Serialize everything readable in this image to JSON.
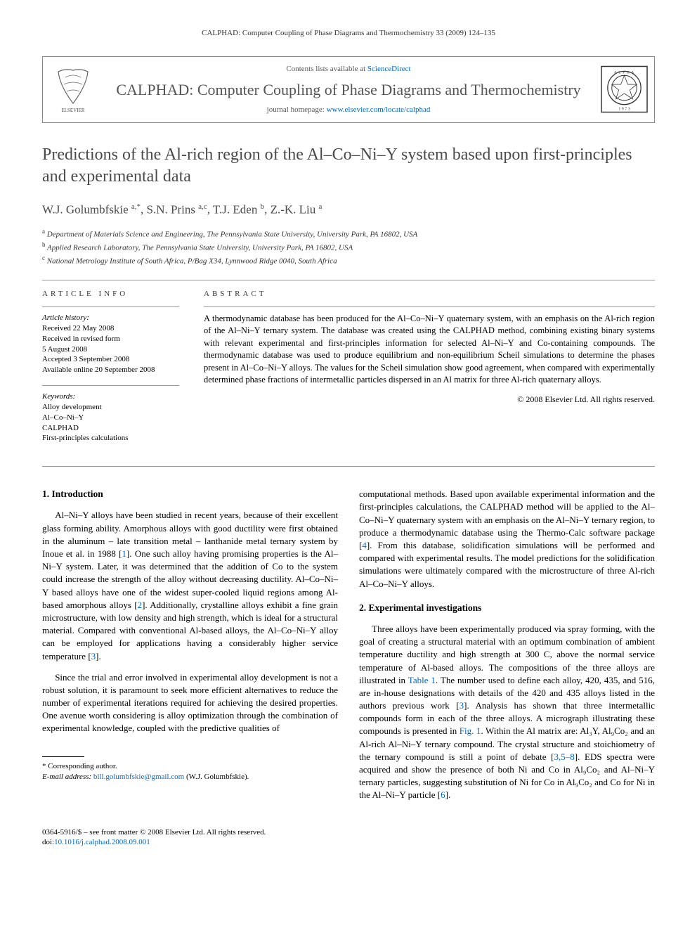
{
  "running_header": "CALPHAD: Computer Coupling of Phase Diagrams and Thermochemistry 33 (2009) 124–135",
  "masthead": {
    "contents_prefix": "Contents lists available at ",
    "contents_link": "ScienceDirect",
    "journal_name": "CALPHAD: Computer Coupling of Phase Diagrams and Thermochemistry",
    "homepage_prefix": "journal homepage: ",
    "homepage_link": "www.elsevier.com/locate/calphad"
  },
  "title": "Predictions of the Al-rich region of the Al–Co–Ni–Y system based upon first-principles and experimental data",
  "authors_html": "W.J. Golumbfskie <sup>a,*</sup>, S.N. Prins <sup>a,c</sup>, T.J. Eden <sup>b</sup>, Z.-K. Liu <sup>a</sup>",
  "affiliations": [
    {
      "sup": "a",
      "text": "Department of Materials Science and Engineering, The Pennsylvania State University, University Park, PA 16802, USA"
    },
    {
      "sup": "b",
      "text": "Applied Research Laboratory, The Pennsylvania State University, University Park, PA 16802, USA"
    },
    {
      "sup": "c",
      "text": "National Metrology Institute of South Africa, P/Bag X34, Lynnwood Ridge 0040, South Africa"
    }
  ],
  "article_info": {
    "heading": "ARTICLE INFO",
    "history_label": "Article history:",
    "history": [
      "Received 22 May 2008",
      "Received in revised form",
      "5 August 2008",
      "Accepted 3 September 2008",
      "Available online 20 September 2008"
    ],
    "keywords_label": "Keywords:",
    "keywords": [
      "Alloy development",
      "Al–Co–Ni–Y",
      "CALPHAD",
      "First-principles calculations"
    ]
  },
  "abstract": {
    "heading": "ABSTRACT",
    "text": "A thermodynamic database has been produced for the Al–Co–Ni–Y quaternary system, with an emphasis on the Al-rich region of the Al–Ni–Y ternary system. The database was created using the CALPHAD method, combining existing binary systems with relevant experimental and first-principles information for selected Al–Ni–Y and Co-containing compounds. The thermodynamic database was used to produce equilibrium and non-equilibrium Scheil simulations to determine the phases present in Al–Co–Ni–Y alloys. The values for the Scheil simulation show good agreement, when compared with experimentally determined phase fractions of intermetallic particles dispersed in an Al matrix for three Al-rich quaternary alloys.",
    "copyright": "© 2008 Elsevier Ltd. All rights reserved."
  },
  "sections": {
    "intro_heading": "1. Introduction",
    "intro_p1": "Al–Ni–Y alloys have been studied in recent years, because of their excellent glass forming ability. Amorphous alloys with good ductility were first obtained in the aluminum – late transition metal – lanthanide metal ternary system by Inoue et al. in 1988 [1]. One such alloy having promising properties is the Al–Ni–Y system. Later, it was determined that the addition of Co to the system could increase the strength of the alloy without decreasing ductility. Al–Co–Ni–Y based alloys have one of the widest super-cooled liquid regions among Al-based amorphous alloys [2]. Additionally, crystalline alloys exhibit a fine grain microstructure, with low density and high strength, which is ideal for a structural material. Compared with conventional Al-based alloys, the Al–Co–Ni–Y alloy can be employed for applications having a considerably higher service temperature [3].",
    "intro_p2": "Since the trial and error involved in experimental alloy development is not a robust solution, it is paramount to seek more efficient alternatives to reduce the number of experimental iterations required for achieving the desired properties. One avenue worth considering is alloy optimization through the combination of experimental knowledge, coupled with the predictive qualities of",
    "col2_p1": "computational methods. Based upon available experimental information and the first-principles calculations, the CALPHAD method will be applied to the Al–Co–Ni–Y quaternary system with an emphasis on the Al–Ni–Y ternary region, to produce a thermodynamic database using the Thermo-Calc software package [4]. From this database, solidification simulations will be performed and compared with experimental results. The model predictions for the solidification simulations were ultimately compared with the microstructure of three Al-rich Al–Co–Ni–Y alloys.",
    "exp_heading": "2. Experimental investigations",
    "exp_p1": "Three alloys have been experimentally produced via spray forming, with the goal of creating a structural material with an optimum combination of ambient temperature ductility and high strength at 300 C, above the normal service temperature of Al-based alloys. The compositions of the three alloys are illustrated in Table 1. The number used to define each alloy, 420, 435, and 516, are in-house designations with details of the 420 and 435 alloys listed in the authors previous work [3]. Analysis has shown that three intermetallic compounds form in each of the three alloys. A micrograph illustrating these compounds is presented in Fig. 1. Within the Al matrix are: Al₃Y, Al₉Co₂ and an Al-rich Al–Ni–Y ternary compound. The crystal structure and stoichiometry of the ternary compound is still a point of debate [3,5–8]. EDS spectra were acquired and show the presence of both Ni and Co in Al₉Co₂ and Al–Ni–Y ternary particles, suggesting substitution of Ni for Co in Al₉Co₂ and Co for Ni in the Al–Ni–Y particle [6]."
  },
  "footnotes": {
    "corr_label": "* Corresponding author.",
    "email_label": "E-mail address: ",
    "email": "bill.golumbfskie@gmail.com",
    "email_suffix": " (W.J. Golumbfskie)."
  },
  "footer": {
    "issn_line": "0364-5916/$ – see front matter © 2008 Elsevier Ltd. All rights reserved.",
    "doi_label": "doi:",
    "doi": "10.1016/j.calphad.2008.09.001"
  },
  "colors": {
    "text": "#000000",
    "muted": "#4a4a4a",
    "link": "#0066cc",
    "rule": "#999999",
    "elsevier_orange": "#ff6600"
  }
}
